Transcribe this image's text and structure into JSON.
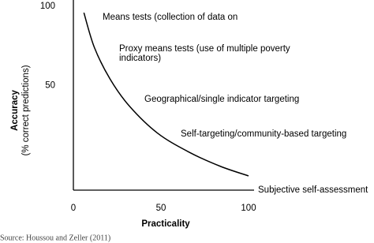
{
  "chart_data": {
    "type": "line",
    "x_label": "Practicality",
    "y_label": "Accuracy",
    "y_sublabel": "(% correct predictions)",
    "x": [
      6,
      12,
      21,
      32,
      48,
      66,
      84,
      100
    ],
    "series": [
      {
        "color": "#000000",
        "values": [
          96,
          74,
          54,
          37,
          20,
          8,
          -1,
          -7
        ]
      }
    ],
    "xlim": [
      0,
      100
    ],
    "xticks": [
      0,
      50,
      100
    ],
    "ylim": [
      -16,
      100
    ],
    "yticks": [
      50,
      100
    ],
    "annotations": [
      "Means tests (collection of data on",
      "Proxy means tests (use of multiple poverty",
      "indicators)",
      "Geographical/single indicator targeting",
      "Self-targeting/community-based targeting",
      "Subjective self-assessment"
    ],
    "source": "Source: Houssou and Zeller (2011)"
  }
}
